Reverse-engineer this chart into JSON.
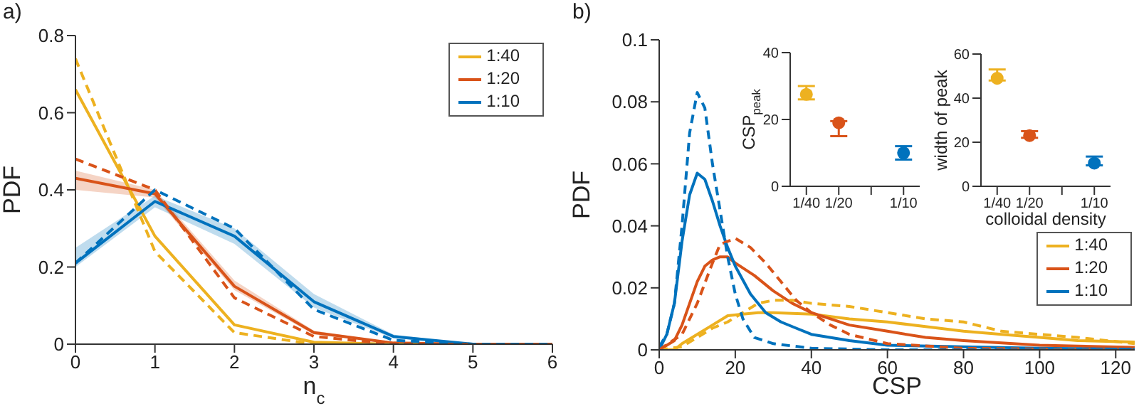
{
  "chart_data": [
    {
      "type": "line",
      "title": "a)",
      "xlabel": "n$_{c}$",
      "ylabel": "PDF",
      "x": [
        0,
        1,
        2,
        3,
        4,
        5,
        6
      ],
      "xlim": [
        0,
        6
      ],
      "xticks": [
        0,
        1,
        2,
        3,
        4,
        5,
        6
      ],
      "ylim": [
        0,
        0.8
      ],
      "yticks": [
        0,
        0.2,
        0.4,
        0.6,
        0.8
      ],
      "legend": "top right",
      "marker": "none",
      "grid": false,
      "series": [
        {
          "name": "1:40",
          "color": "#edb120",
          "line_style": "solid",
          "values": [
            0.66,
            0.28,
            0.05,
            0.005,
            0,
            0,
            0
          ]
        },
        {
          "name": "1:20",
          "color": "#d95319",
          "line_style": "solid",
          "values": [
            0.43,
            0.39,
            0.15,
            0.03,
            0.003,
            0,
            0
          ],
          "lower": [
            0.4,
            0.38,
            0.14,
            0.025,
            0.002,
            0,
            0
          ],
          "upper": [
            0.45,
            0.4,
            0.165,
            0.035,
            0.004,
            0,
            0
          ]
        },
        {
          "name": "1:10",
          "color": "#0072bd",
          "line_style": "solid",
          "values": [
            0.21,
            0.37,
            0.28,
            0.11,
            0.02,
            0,
            0
          ],
          "lower": [
            0.2,
            0.355,
            0.26,
            0.095,
            0.015,
            0,
            0
          ],
          "upper": [
            0.25,
            0.385,
            0.3,
            0.13,
            0.025,
            0,
            0
          ]
        },
        {
          "color": "#edb120",
          "line_style": "dashed",
          "values": [
            0.74,
            0.24,
            0.03,
            0,
            0,
            0,
            0
          ]
        },
        {
          "color": "#d95319",
          "line_style": "dashed",
          "values": [
            0.48,
            0.4,
            0.12,
            0.02,
            0,
            0,
            0
          ]
        },
        {
          "color": "#0072bd",
          "line_style": "dashed",
          "values": [
            0.21,
            0.4,
            0.3,
            0.09,
            0.01,
            0,
            0
          ]
        }
      ]
    },
    {
      "type": "line",
      "title": "b)",
      "xlabel": "CSP",
      "ylabel": "PDF",
      "xlim": [
        0,
        125
      ],
      "xticks": [
        0,
        20,
        40,
        60,
        80,
        100,
        120
      ],
      "ylim": [
        0,
        0.1
      ],
      "yticks": [
        0,
        0.02,
        0.04,
        0.06,
        0.08,
        0.1
      ],
      "legend": "bottom right",
      "marker": "none",
      "grid": false,
      "series": [
        {
          "name": "1:40",
          "color": "#edb120",
          "line_style": "solid",
          "x": [
            0,
            4,
            6,
            10,
            14,
            18,
            22,
            26,
            30,
            40,
            50,
            60,
            70,
            80,
            90,
            100,
            110,
            125
          ],
          "values": [
            0,
            0,
            0.002,
            0.005,
            0.008,
            0.011,
            0.0115,
            0.012,
            0.012,
            0.0115,
            0.01,
            0.009,
            0.0075,
            0.006,
            0.005,
            0.004,
            0.003,
            0.0025
          ]
        },
        {
          "name": "1:20",
          "color": "#d95319",
          "line_style": "solid",
          "x": [
            0,
            4,
            6,
            8,
            10,
            12,
            14,
            16,
            18,
            20,
            25,
            30,
            35,
            40,
            50,
            60,
            70,
            80,
            100,
            125
          ],
          "values": [
            0,
            0.003,
            0.008,
            0.015,
            0.022,
            0.027,
            0.029,
            0.03,
            0.03,
            0.028,
            0.024,
            0.019,
            0.015,
            0.012,
            0.008,
            0.006,
            0.004,
            0.003,
            0.0015,
            0.0008
          ]
        },
        {
          "name": "1:10",
          "color": "#0072bd",
          "line_style": "solid",
          "x": [
            0,
            2,
            4,
            6,
            8,
            10,
            12,
            14,
            16,
            18,
            20,
            24,
            28,
            32,
            36,
            40,
            50,
            60,
            80,
            100,
            125
          ],
          "values": [
            0,
            0.005,
            0.015,
            0.035,
            0.05,
            0.057,
            0.055,
            0.048,
            0.04,
            0.033,
            0.027,
            0.018,
            0.012,
            0.009,
            0.007,
            0.005,
            0.003,
            0.0015,
            0.001,
            0.0005,
            0.0002
          ]
        },
        {
          "color": "#edb120",
          "line_style": "dashed",
          "x": [
            0,
            6,
            10,
            14,
            18,
            22,
            26,
            30,
            35,
            40,
            50,
            60,
            70,
            80,
            90,
            100,
            110,
            125
          ],
          "values": [
            0,
            0.001,
            0.004,
            0.007,
            0.009,
            0.012,
            0.015,
            0.016,
            0.016,
            0.015,
            0.014,
            0.012,
            0.01,
            0.009,
            0.006,
            0.005,
            0.004,
            0.002
          ]
        },
        {
          "color": "#d95319",
          "line_style": "dashed",
          "x": [
            0,
            6,
            10,
            14,
            16,
            20,
            24,
            28,
            32,
            36,
            40,
            45,
            50,
            60,
            80,
            125
          ],
          "values": [
            0,
            0.005,
            0.015,
            0.028,
            0.034,
            0.036,
            0.033,
            0.028,
            0.022,
            0.016,
            0.012,
            0.008,
            0.005,
            0.002,
            0.0005,
            0
          ]
        },
        {
          "color": "#0072bd",
          "line_style": "dashed",
          "x": [
            0,
            2,
            4,
            6,
            8,
            10,
            12,
            14,
            16,
            18,
            20,
            22,
            25,
            30,
            40,
            60,
            125
          ],
          "values": [
            0.001,
            0.005,
            0.015,
            0.04,
            0.07,
            0.083,
            0.078,
            0.06,
            0.045,
            0.03,
            0.018,
            0.01,
            0.004,
            0.002,
            0.0005,
            0,
            0
          ]
        }
      ]
    },
    {
      "type": "scatter",
      "ylabel": "CSP$_{peak}$",
      "categories": [
        "1/40",
        "1/20",
        null,
        "1/10"
      ],
      "ylim": [
        0,
        40
      ],
      "yticks": [
        0,
        20,
        40
      ],
      "marker": "circle",
      "grid": false,
      "series": [
        {
          "colors": [
            "#edb120",
            "#d95319",
            null,
            "#0072bd"
          ],
          "values": [
            27.5,
            19,
            null,
            10
          ],
          "errors": [
            [
              26,
              30
            ],
            [
              15,
              19.5
            ],
            null,
            [
              8,
              12
            ]
          ]
        }
      ]
    },
    {
      "type": "scatter",
      "ylabel": "width of peak",
      "xlabel": "colloidal density",
      "categories": [
        "1/40",
        "1/20",
        null,
        "1/10"
      ],
      "ylim": [
        0,
        60
      ],
      "yticks": [
        0,
        20,
        40,
        60
      ],
      "marker": "circle",
      "grid": false,
      "series": [
        {
          "colors": [
            "#edb120",
            "#d95319",
            null,
            "#0072bd"
          ],
          "values": [
            49,
            23,
            null,
            10.5
          ],
          "errors": [
            [
              48,
              53
            ],
            [
              22,
              25
            ],
            null,
            [
              9.5,
              13.5
            ]
          ]
        }
      ]
    }
  ]
}
